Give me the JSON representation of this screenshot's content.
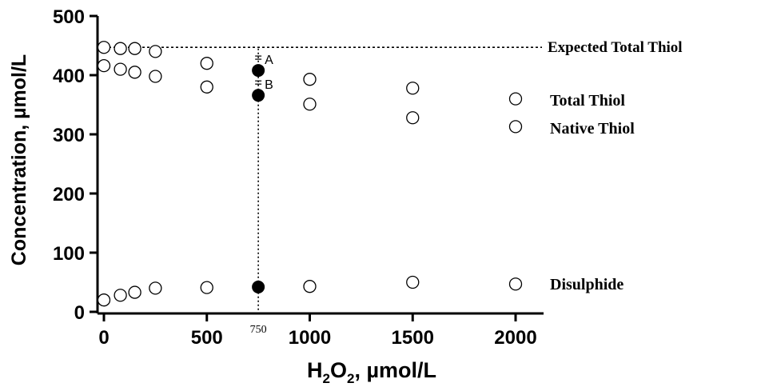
{
  "chart_data": {
    "type": "scatter",
    "xlabel_main": "H",
    "xlabel_sub1": "2",
    "xlabel_mid": "O",
    "xlabel_sub2": "2",
    "xlabel_tail": ", µmol/L",
    "ylabel": "Concentration, µmol/L",
    "xlim": [
      0,
      2150
    ],
    "ylim": [
      0,
      500
    ],
    "x_ticks": [
      0,
      500,
      1000,
      1500,
      2000
    ],
    "x_tick_labels": [
      "0",
      "500",
      "1000",
      "1500",
      "2000"
    ],
    "y_ticks": [
      0,
      100,
      200,
      300,
      400,
      500
    ],
    "y_tick_labels": [
      "0",
      "100",
      "200",
      "300",
      "400",
      "500"
    ],
    "expected_total_thiol": 447,
    "expected_label": "Expected Total Thiol",
    "marker_x": 750,
    "marker_label": "750",
    "series": [
      {
        "name": "Total Thiol",
        "x": [
          0,
          80,
          150,
          250,
          500,
          1000,
          1500,
          2000
        ],
        "y": [
          447,
          445,
          445,
          440,
          420,
          393,
          378,
          360
        ]
      },
      {
        "name": "Native Thiol",
        "x": [
          0,
          80,
          150,
          250,
          500,
          1000,
          1500,
          2000
        ],
        "y": [
          416,
          410,
          405,
          398,
          380,
          351,
          328,
          313
        ]
      },
      {
        "name": "Disulphide",
        "x": [
          0,
          80,
          150,
          250,
          500,
          1000,
          1500,
          2000
        ],
        "y": [
          20,
          28,
          33,
          40,
          41,
          43,
          50,
          47
        ]
      }
    ],
    "highlight_points": [
      {
        "label": "A",
        "x": 750,
        "y": 408
      },
      {
        "label": "B",
        "x": 750,
        "y": 366
      },
      {
        "label": "",
        "x": 750,
        "y": 42
      }
    ]
  }
}
